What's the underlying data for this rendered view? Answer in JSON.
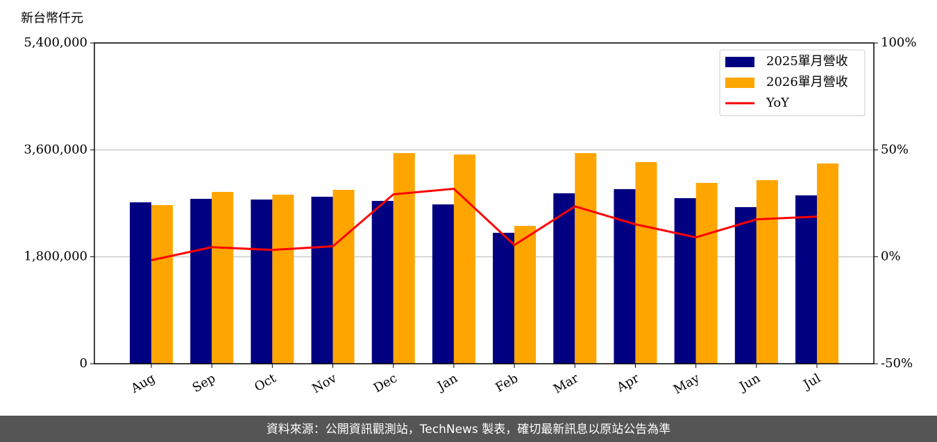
{
  "chart_data": {
    "type": "bar-line",
    "y_label": "新台幣仟元",
    "categories": [
      "Aug",
      "Sep",
      "Oct",
      "Nov",
      "Dec",
      "Jan",
      "Feb",
      "Mar",
      "Apr",
      "May",
      "Jun",
      "Jul"
    ],
    "series": [
      {
        "name": "2025單月營收",
        "color": "#000080",
        "type": "bar",
        "values": [
          2717000,
          2776000,
          2764000,
          2811000,
          2741000,
          2682000,
          2204000,
          2869000,
          2939000,
          2787000,
          2636000,
          2834000
        ]
      },
      {
        "name": "2026單月營收",
        "color": "#ffa500",
        "type": "bar",
        "values": [
          2671000,
          2892000,
          2846000,
          2927000,
          3546000,
          3522000,
          2321000,
          3546000,
          3394000,
          3044000,
          3091000,
          3371000
        ]
      },
      {
        "name": "YoY",
        "color": "#ff0000",
        "type": "line",
        "axis": "y2",
        "values": [
          -1.6,
          4.5,
          3.2,
          4.9,
          29.2,
          31.8,
          5.5,
          23.6,
          15.2,
          9.1,
          17.5,
          18.8
        ]
      }
    ],
    "ylim": [
      0,
      5400000
    ],
    "yticks": [
      0,
      {
        "value": 1800000,
        "label": "1,800,000"
      },
      {
        "value": 3600000,
        "label": "3,600,000"
      },
      {
        "value": 5400000,
        "label": "5,400,000"
      }
    ],
    "y2lim": [
      -50,
      100
    ],
    "y2ticks": [
      {
        "value": -50,
        "label": "-50%"
      },
      {
        "value": 0,
        "label": "0%"
      },
      {
        "value": 50,
        "label": "50%"
      },
      {
        "value": 100,
        "label": "100%"
      }
    ],
    "grid": true,
    "legend": "upper right",
    "footer": "資料來源：公開資訊觀測站，TechNews 製表，確切最新訊息以原站公告為準"
  }
}
